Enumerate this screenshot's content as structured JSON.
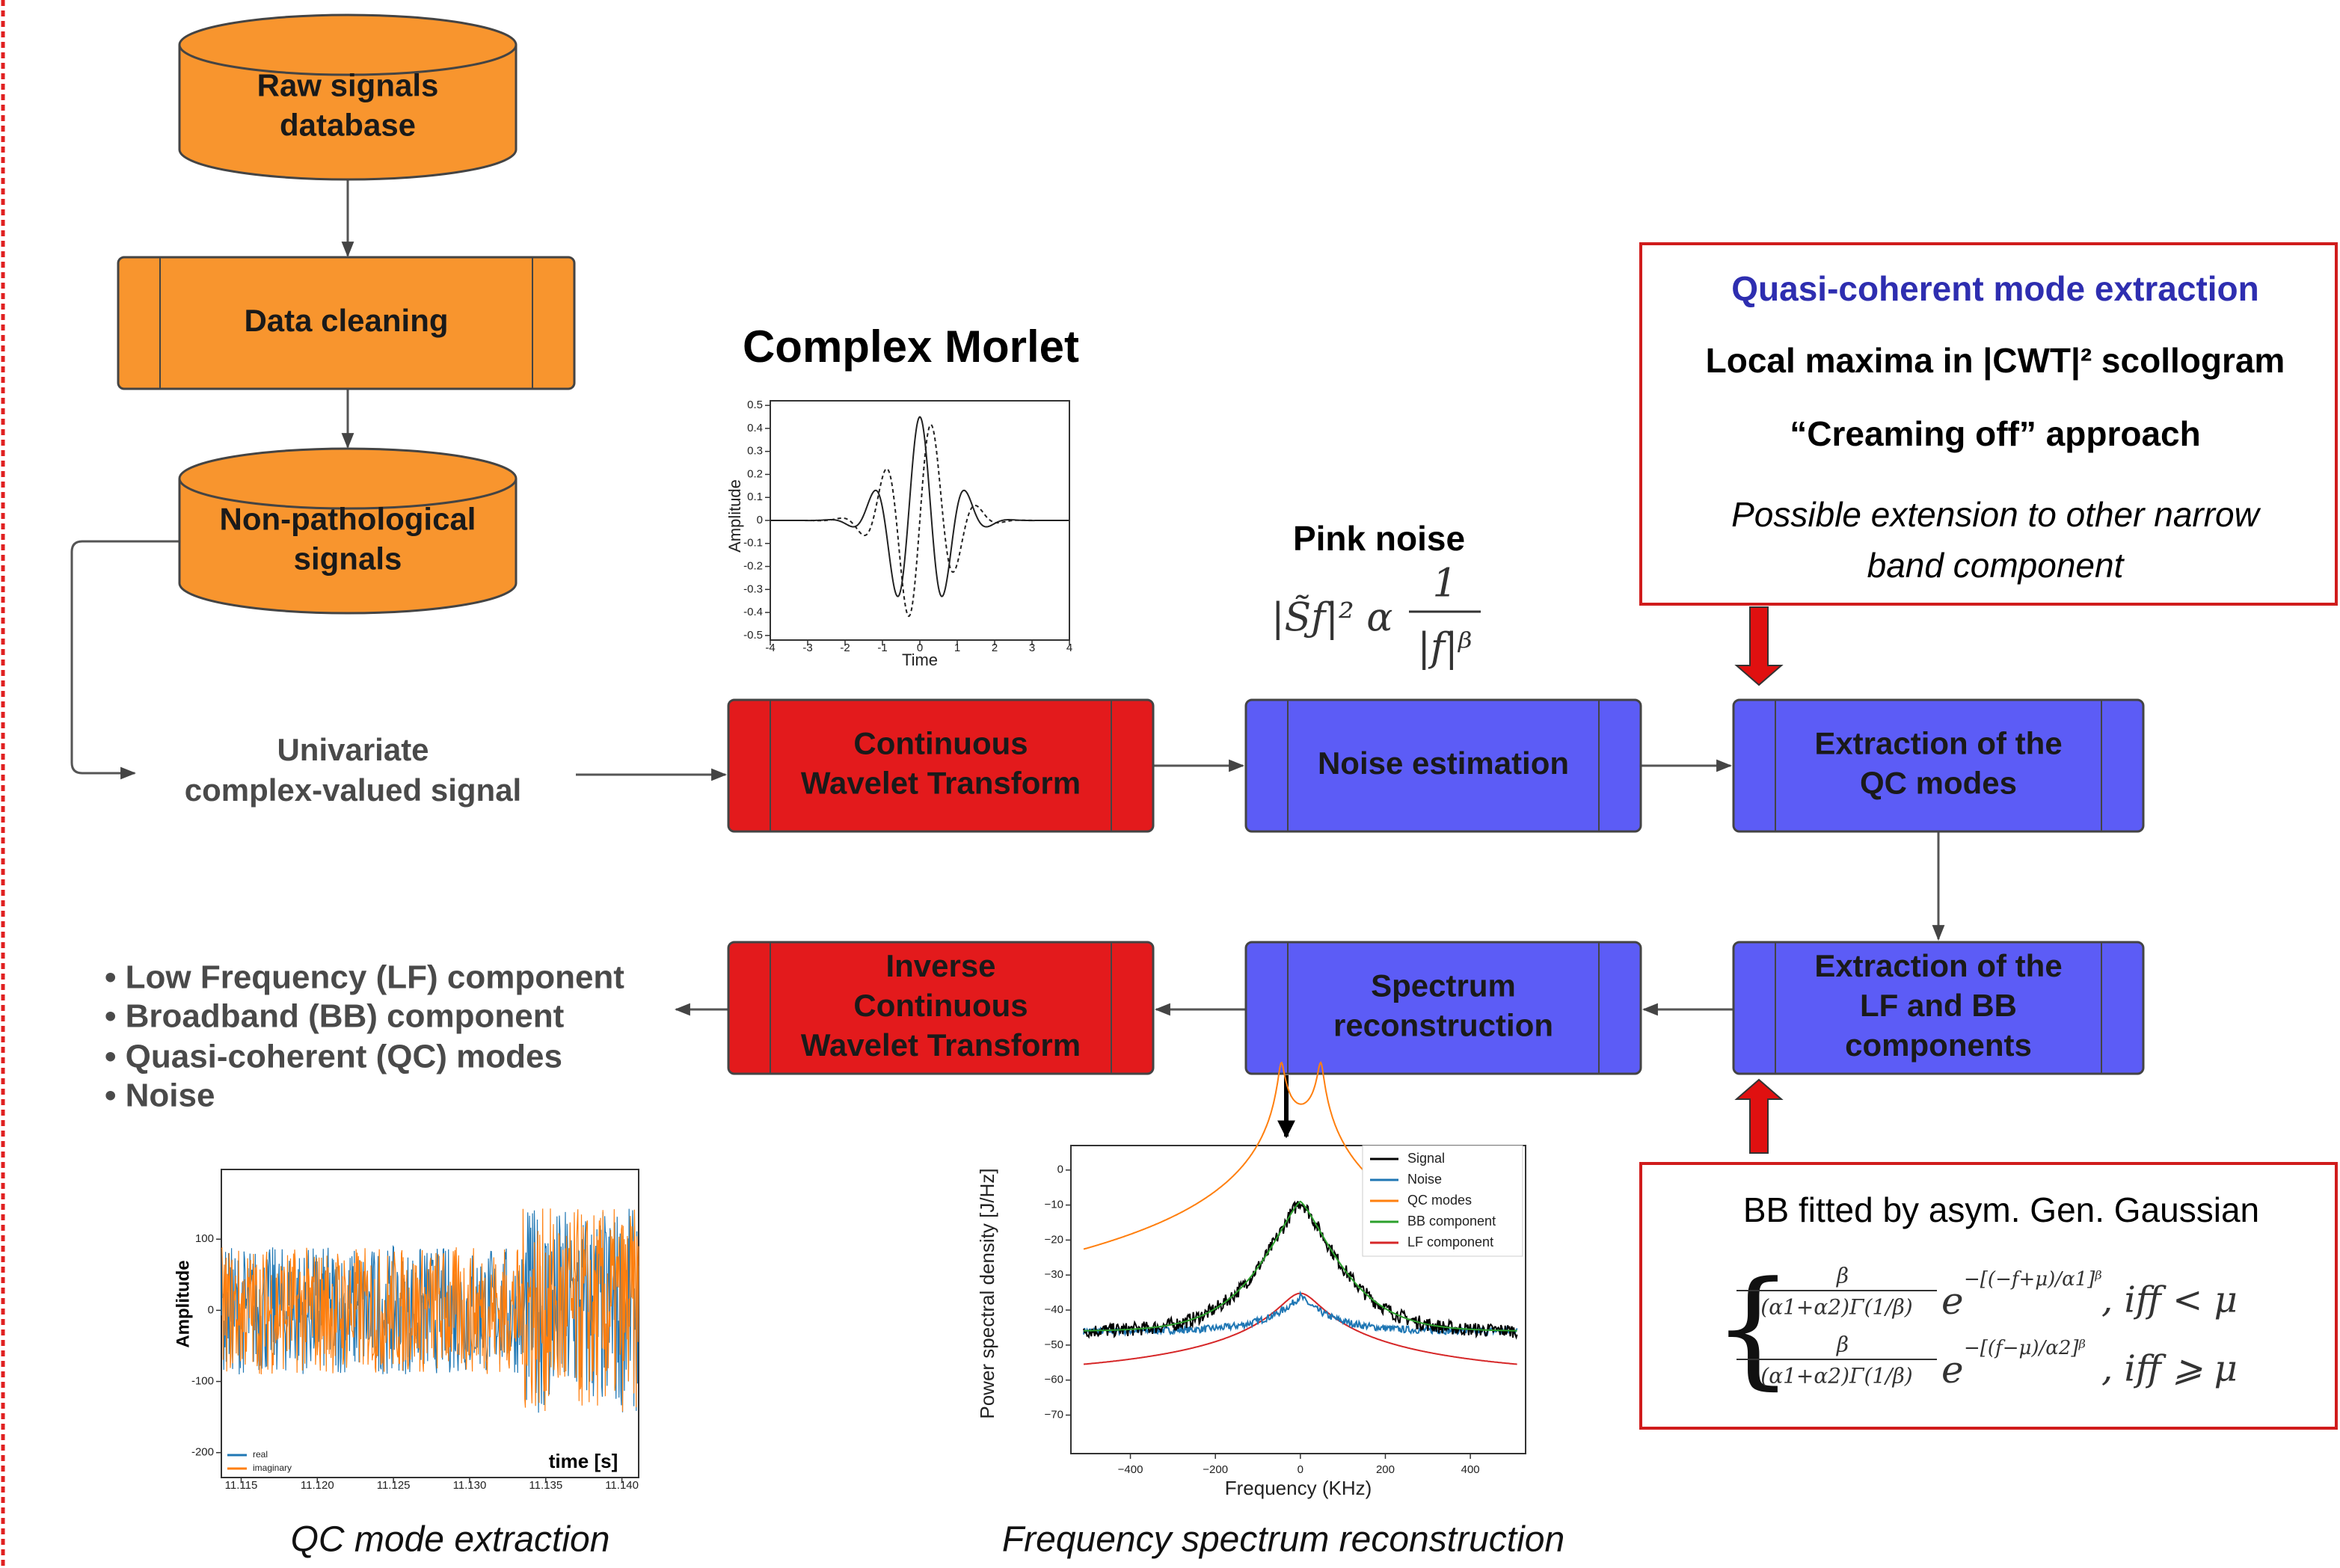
{
  "nodes": [
    {
      "lines": [
        "Raw signals",
        "database"
      ]
    },
    {
      "lines": [
        "Data cleaning"
      ]
    },
    {
      "lines": [
        "Non-pathological",
        "signals"
      ]
    },
    {
      "lines": [
        "Continuous",
        "Wavelet Transform"
      ]
    },
    {
      "lines": [
        "Noise estimation"
      ]
    },
    {
      "lines": [
        "Extraction of the",
        "QC modes"
      ]
    },
    {
      "lines": [
        "Extraction of the",
        "LF and BB",
        "components"
      ]
    },
    {
      "lines": [
        "Spectrum",
        "reconstruction"
      ]
    },
    {
      "lines": [
        "Inverse",
        "Continuous",
        "Wavelet Transform"
      ]
    }
  ],
  "input_label": [
    "Univariate",
    "complex-valued signal"
  ],
  "outputs": [
    "• Low Frequency (LF) component",
    "• Broadband (BB) component",
    "• Quasi-coherent (QC) modes",
    "• Noise"
  ],
  "morlet": {
    "title": "Complex Morlet",
    "ylabel": "Amplitude",
    "xlabel": "Time",
    "xlim": [
      -4,
      4
    ],
    "ylim": [
      -0.52,
      0.52
    ],
    "xticks": [
      -4,
      -3,
      -2,
      -1,
      0,
      1,
      2,
      3,
      4
    ],
    "yticks": [
      0.5,
      0.4,
      0.3,
      0.2,
      0.1,
      0,
      -0.1,
      -0.2,
      -0.3,
      -0.4,
      -0.5
    ]
  },
  "pink_noise": {
    "title": "Pink noise",
    "lhs": "|S̃ƒ|² α",
    "numerator": "1",
    "denominator": "|f|ᵝ"
  },
  "qc_box": {
    "heading": "Quasi-coherent mode extraction",
    "lines": [
      "Local maxima in |CWT|² scollogram",
      "“Creaming off” approach"
    ],
    "note": [
      "Possible extension to other narrow",
      "band component"
    ]
  },
  "bb_box": {
    "title": "BB fitted by asym. Gen. Gaussian",
    "cases": [
      {
        "numerator": "β",
        "denominator": "(α1+α2)Γ(1/β)",
        "base": "e",
        "exponent": "−[(−f+μ)/α1]ᵝ",
        "condition": ", iff < μ"
      },
      {
        "numerator": "β",
        "denominator": "(α1+α2)Γ(1/β)",
        "base": "e",
        "exponent": "−[(f−μ)/α2]ᵝ",
        "condition": ", iff ⩾ μ"
      }
    ]
  },
  "spectrum_plot": {
    "ylabel": "Power spectral density   [J/Hz]",
    "xlabel": "Frequency (KHz)",
    "xlim": [
      -540,
      530
    ],
    "ylim": [
      -81,
      7
    ],
    "xticks": [
      {
        "value": -400,
        "label": "−400"
      },
      {
        "value": -200,
        "label": "−200"
      },
      0,
      200,
      400
    ],
    "yticks": [
      0,
      {
        "value": -10,
        "label": "−10"
      },
      {
        "value": -20,
        "label": "−20"
      },
      {
        "value": -30,
        "label": "−30"
      },
      {
        "value": -40,
        "label": "−40"
      },
      {
        "value": -50,
        "label": "−50"
      },
      {
        "value": -60,
        "label": "−60"
      },
      {
        "value": -70,
        "label": "−70"
      }
    ],
    "legend": [
      {
        "name": "Signal",
        "color": "#000000"
      },
      {
        "name": "Noise",
        "color": "#1f77b4"
      },
      {
        "name": "QC modes",
        "color": "#ff7f0e"
      },
      {
        "name": "BB component",
        "color": "#2ca02c"
      },
      {
        "name": "LF component",
        "color": "#d62728"
      }
    ]
  },
  "qc_plot": {
    "ylabel": "Amplitude",
    "xlabel": "time [s]",
    "xlim": [
      11.1137,
      11.1411
    ],
    "ylim": [
      -235,
      198
    ],
    "xticks": [
      11.115,
      {
        "value": 11.12,
        "label": "11.120"
      },
      11.125,
      {
        "value": 11.13,
        "label": "11.130"
      },
      11.135,
      {
        "value": 11.14,
        "label": "11.140"
      }
    ],
    "yticks": [
      100,
      0,
      -100,
      -200
    ],
    "legend": [
      {
        "name": "real",
        "color": "#1f77b4"
      },
      {
        "name": "imaginary",
        "color": "#ff7f0e"
      }
    ]
  },
  "captions": [
    "QC mode extraction",
    "Frequency spectrum reconstruction"
  ]
}
